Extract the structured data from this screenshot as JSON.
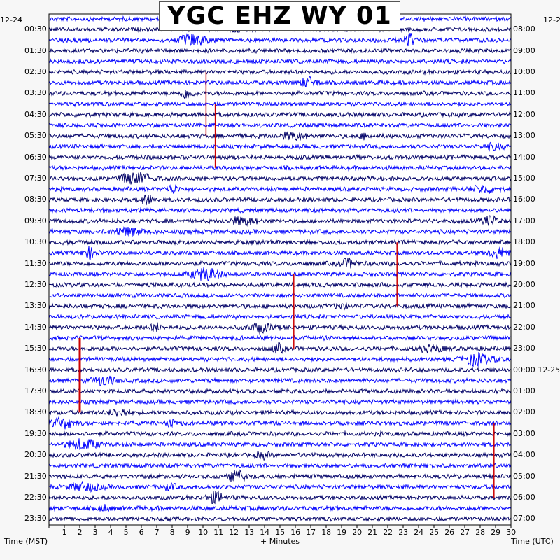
{
  "chart_data": {
    "type": "line",
    "title": "YGC EHZ WY 01",
    "date_left": "12-24",
    "date_right": "12-2",
    "date_right_mid": "12-25",
    "xlabel": "+ Minutes",
    "left_axis_title": "Time (MST)",
    "right_axis_title": "Time (UTC)",
    "x_ticks": [
      "1",
      "2",
      "3",
      "4",
      "5",
      "6",
      "7",
      "8",
      "9",
      "10",
      "11",
      "12",
      "13",
      "14",
      "15",
      "16",
      "17",
      "18",
      "19",
      "20",
      "21",
      "22",
      "23",
      "24",
      "25",
      "26",
      "27",
      "28",
      "29",
      "30"
    ],
    "xlim": [
      0,
      30
    ],
    "left_labels": [
      "00:30",
      "01:30",
      "02:30",
      "03:30",
      "04:30",
      "05:30",
      "06:30",
      "07:30",
      "08:30",
      "09:30",
      "10:30",
      "11:30",
      "12:30",
      "13:30",
      "14:30",
      "15:30",
      "16:30",
      "17:30",
      "18:30",
      "19:30",
      "20:30",
      "21:30",
      "22:30",
      "23:30"
    ],
    "right_labels": [
      "08:00",
      "09:00",
      "10:00",
      "11:00",
      "12:00",
      "13:00",
      "14:00",
      "15:00",
      "16:00",
      "17:00",
      "18:00",
      "19:00",
      "20:00",
      "21:00",
      "22:00",
      "23:00",
      "00:00",
      "01:00",
      "02:00",
      "03:00",
      "04:00",
      "05:00",
      "06:00",
      "07:00"
    ],
    "trace_count": 48,
    "trace_colors": [
      "#0000ff",
      "#000066"
    ],
    "event_color": "#cc0000",
    "events": [
      {
        "minute": 10.2,
        "start_row": 5,
        "end_row": 11
      },
      {
        "minute": 10.8,
        "start_row": 8,
        "end_row": 14
      },
      {
        "minute": 2.0,
        "start_row": 30,
        "end_row": 37
      },
      {
        "minute": 15.9,
        "start_row": 24,
        "end_row": 31
      },
      {
        "minute": 22.6,
        "start_row": 21,
        "end_row": 27
      },
      {
        "minute": 28.9,
        "start_row": 38,
        "end_row": 45
      }
    ]
  }
}
